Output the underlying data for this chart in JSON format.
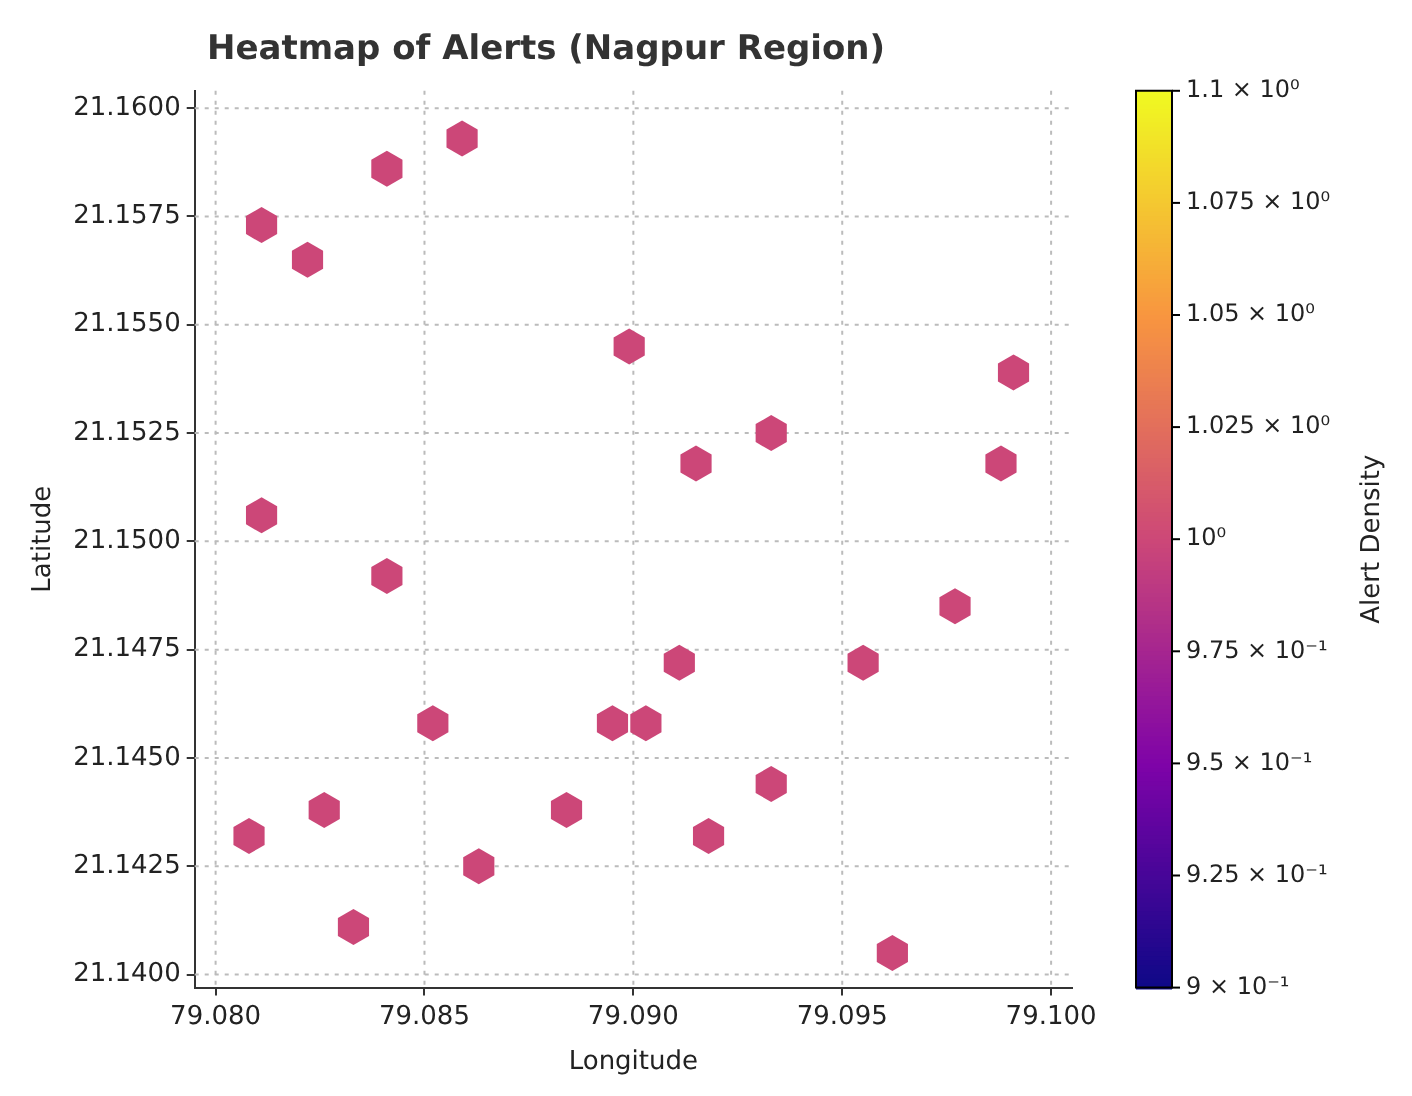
{
  "chart_data": {
    "type": "scatter",
    "title": "Heatmap of Alerts (Nagpur Region)",
    "xlabel": "Longitude",
    "ylabel": "Latitude",
    "clabel": "Alert Density",
    "x": [
      79.0811,
      79.0822,
      79.0841,
      79.0859,
      79.0899,
      79.0991,
      79.0933,
      79.0915,
      79.0988,
      79.0811,
      79.0841,
      79.0977,
      79.0911,
      79.0955,
      79.0852,
      79.0895,
      79.0903,
      79.0933,
      79.0826,
      79.0884,
      79.0808,
      79.0918,
      79.0863,
      79.0833,
      79.0962
    ],
    "values": [
      21.1573,
      21.1565,
      21.1586,
      21.1593,
      21.1545,
      21.1539,
      21.1525,
      21.1518,
      21.1518,
      21.1506,
      21.1492,
      21.1485,
      21.1472,
      21.1472,
      21.1458,
      21.1458,
      21.1458,
      21.1444,
      21.1438,
      21.1438,
      21.1432,
      21.1432,
      21.1425,
      21.1411,
      21.1405
    ],
    "cvalues": [
      1,
      1,
      1,
      1,
      1,
      1,
      1,
      1,
      1,
      1,
      1,
      1,
      1,
      1,
      1,
      1,
      1,
      1,
      1,
      1,
      1,
      1,
      1,
      1,
      1
    ],
    "xlim": [
      79.0795,
      79.1005
    ],
    "ylim": [
      21.1397,
      21.1604
    ],
    "xticks": [
      {
        "value": 79.08,
        "label": "79.080"
      },
      {
        "value": 79.085,
        "label": "79.085"
      },
      {
        "value": 79.09,
        "label": "79.090"
      },
      {
        "value": 79.095,
        "label": "79.095"
      },
      {
        "value": 79.1,
        "label": "79.100"
      }
    ],
    "yticks": [
      {
        "value": 21.14,
        "label": "21.1400"
      },
      {
        "value": 21.1425,
        "label": "21.1425"
      },
      {
        "value": 21.145,
        "label": "21.1450"
      },
      {
        "value": 21.1475,
        "label": "21.1475"
      },
      {
        "value": 21.15,
        "label": "21.1500"
      },
      {
        "value": 21.1525,
        "label": "21.1525"
      },
      {
        "value": 21.155,
        "label": "21.1550"
      },
      {
        "value": 21.1575,
        "label": "21.1575"
      },
      {
        "value": 21.16,
        "label": "21.1600"
      }
    ],
    "clim": [
      0.9,
      1.1
    ],
    "cticks": [
      {
        "value": 0.9,
        "label": "9 × 10⁻¹"
      },
      {
        "value": 0.925,
        "label": "9.25 × 10⁻¹"
      },
      {
        "value": 0.95,
        "label": "9.5 × 10⁻¹"
      },
      {
        "value": 0.975,
        "label": "9.75 × 10⁻¹"
      },
      {
        "value": 1,
        "label": "10⁰"
      },
      {
        "value": 1.025,
        "label": "1.025 × 10⁰"
      },
      {
        "value": 1.05,
        "label": "1.05 × 10⁰"
      },
      {
        "value": 1.075,
        "label": "1.075 × 10⁰"
      },
      {
        "value": 1.1,
        "label": "1.1 × 10⁰"
      }
    ],
    "grid": true
  }
}
